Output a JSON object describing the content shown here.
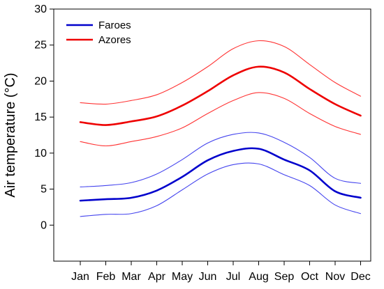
{
  "chart_data": {
    "type": "line",
    "title": "",
    "xlabel": "",
    "ylabel": "Air  temperature (°C)",
    "categories": [
      "Jan",
      "Feb",
      "Mar",
      "Apr",
      "May",
      "Jun",
      "Jul",
      "Aug",
      "Sep",
      "Oct",
      "Nov",
      "Dec"
    ],
    "ylim": [
      -5,
      30
    ],
    "yticks": [
      0,
      5,
      10,
      15,
      20,
      25,
      30
    ],
    "grid": false,
    "legend_position": "top-left",
    "series": [
      {
        "name": "Faroes",
        "role": "mean",
        "color": "#0000cc",
        "values": [
          3.4,
          3.6,
          3.8,
          4.8,
          6.7,
          9.0,
          10.3,
          10.6,
          9.1,
          7.6,
          4.7,
          3.8
        ]
      },
      {
        "name": "",
        "role": "upper",
        "color": "#4444ee",
        "values": [
          5.3,
          5.5,
          5.9,
          7.1,
          9.1,
          11.4,
          12.6,
          12.8,
          11.5,
          9.4,
          6.5,
          5.8
        ]
      },
      {
        "name": "",
        "role": "lower",
        "color": "#4444ee",
        "values": [
          1.2,
          1.5,
          1.6,
          2.7,
          4.9,
          7.1,
          8.4,
          8.5,
          7.0,
          5.5,
          2.8,
          1.6
        ]
      },
      {
        "name": "Azores",
        "role": "mean",
        "color": "#ee0000",
        "values": [
          14.3,
          13.9,
          14.4,
          15.1,
          16.6,
          18.6,
          20.8,
          22.0,
          21.2,
          18.9,
          16.8,
          15.2
        ]
      },
      {
        "name": "",
        "role": "upper",
        "color": "#ff3333",
        "values": [
          17.0,
          16.8,
          17.3,
          18.1,
          19.8,
          22.0,
          24.5,
          25.6,
          24.8,
          22.3,
          19.8,
          17.9
        ]
      },
      {
        "name": "",
        "role": "lower",
        "color": "#ff3333",
        "values": [
          11.6,
          11.0,
          11.6,
          12.3,
          13.5,
          15.5,
          17.3,
          18.4,
          17.6,
          15.5,
          13.7,
          12.6
        ]
      }
    ]
  }
}
